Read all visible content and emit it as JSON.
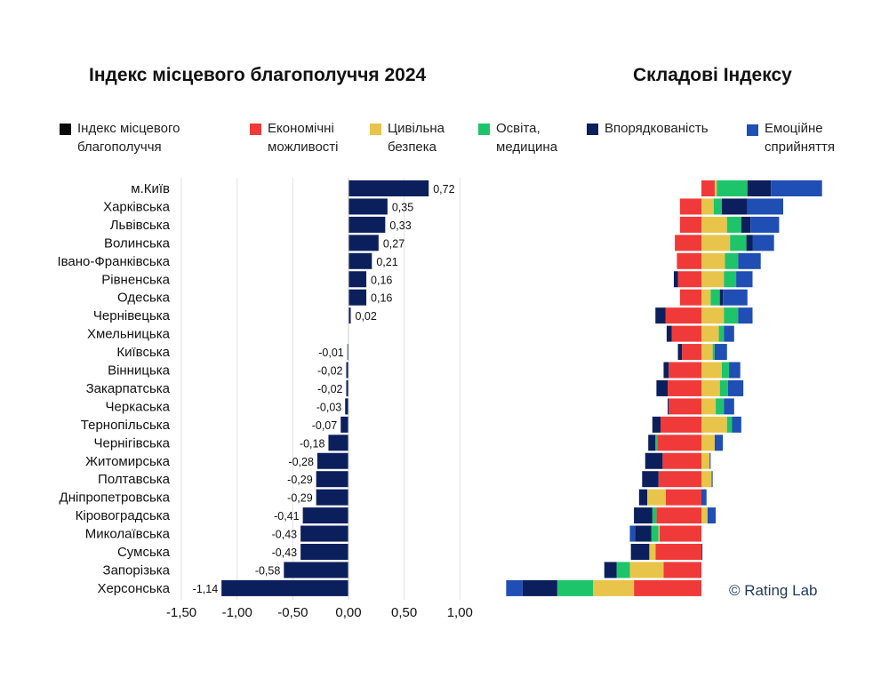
{
  "titles": {
    "left": "Індекс місцевого благополуччя 2024",
    "right": "Складові Індексу"
  },
  "legend": [
    {
      "label": "Індекс місцевого благополуччя",
      "color": "#0a0a0a"
    },
    {
      "label": "Економічні можливості",
      "color": "#f03a3a"
    },
    {
      "label": "Цивільна безпека",
      "color": "#e8c54a"
    },
    {
      "label": "Освіта, медицина",
      "color": "#1ec46a"
    },
    {
      "label": "Впорядкованість",
      "color": "#0b1f5c"
    },
    {
      "label": "Емоційне сприйняття",
      "color": "#1f4eb4"
    }
  ],
  "credit": "© Rating Lab",
  "chart_data": [
    {
      "type": "bar",
      "orientation": "horizontal",
      "title": "Індекс місцевого благополуччя 2024",
      "bar_color": "#0b1f5c",
      "xlim": [
        -1.5,
        1.0
      ],
      "x_ticks": [
        "-1,50",
        "-1,00",
        "-0,50",
        "0,00",
        "0,50",
        "1,00"
      ],
      "x_tick_values": [
        -1.5,
        -1.0,
        -0.5,
        0.0,
        0.5,
        1.0
      ],
      "grid": true,
      "categories": [
        "м.Київ",
        "Харківська",
        "Львівська",
        "Волинська",
        "Івано-Франківська",
        "Рівненська",
        "Одеська",
        "Чернівецька",
        "Хмельницька",
        "Київська",
        "Вінницька",
        "Закарпатська",
        "Черкаська",
        "Тернопільська",
        "Чернігівська",
        "Житомирська",
        "Полтавська",
        "Дніпропетровська",
        "Кіровоградська",
        "Миколаївська",
        "Сумська",
        "Запорізька",
        "Херсонська"
      ],
      "values": [
        0.72,
        0.35,
        0.33,
        0.27,
        0.21,
        0.16,
        0.16,
        0.02,
        0.0,
        -0.01,
        -0.02,
        -0.02,
        -0.03,
        -0.07,
        -0.18,
        -0.28,
        -0.29,
        -0.29,
        -0.41,
        -0.43,
        -0.43,
        -0.58,
        -1.14
      ],
      "value_labels": [
        "0,72",
        "0,35",
        "0,33",
        "0,27",
        "0,21",
        "0,16",
        "0,16",
        "0,02",
        "",
        "-0,01",
        "-0,02",
        "-0,02",
        "-0,03",
        "-0,07",
        "-0,18",
        "-0,28",
        "-0,29",
        "-0,29",
        "-0,41",
        "-0,43",
        "-0,43",
        "-0,58",
        "-1,14"
      ]
    },
    {
      "type": "bar",
      "orientation": "horizontal",
      "stacked": "diverging",
      "title": "Складові Індексу",
      "categories": [
        "м.Київ",
        "Харківська",
        "Львівська",
        "Волинська",
        "Івано-Франківська",
        "Рівненська",
        "Одеська",
        "Чернівецька",
        "Хмельницька",
        "Київська",
        "Вінницька",
        "Закарпатська",
        "Черкаська",
        "Тернопільська",
        "Чернігівська",
        "Житомирська",
        "Полтавська",
        "Дніпропетровська",
        "Кіровоградська",
        "Миколаївська",
        "Сумська",
        "Запорізька",
        "Херсонська"
      ],
      "series": [
        {
          "name": "Економічні можливості",
          "color": "#f03a3a",
          "values": [
            0.13,
            -0.21,
            -0.21,
            -0.26,
            -0.24,
            -0.23,
            -0.21,
            -0.35,
            -0.29,
            -0.19,
            -0.32,
            -0.33,
            -0.32,
            -0.4,
            -0.43,
            -0.38,
            -0.42,
            -0.35,
            -0.44,
            -0.41,
            -0.45,
            -0.37,
            -0.66
          ]
        },
        {
          "name": "Цивільна безпека",
          "color": "#e8c54a",
          "values": [
            0.02,
            0.12,
            0.25,
            0.28,
            0.23,
            0.22,
            0.09,
            0.22,
            0.17,
            0.11,
            0.2,
            0.18,
            0.14,
            0.25,
            0.13,
            0.08,
            0.1,
            -0.18,
            0.06,
            -0.01,
            -0.06,
            -0.33,
            -0.4
          ]
        },
        {
          "name": "Освіта, медицина",
          "color": "#1ec46a",
          "values": [
            0.3,
            0.08,
            0.14,
            0.16,
            0.13,
            0.12,
            0.09,
            0.14,
            0.05,
            0.02,
            0.07,
            0.08,
            0.08,
            0.05,
            -0.02,
            0.0,
            0.0,
            0.0,
            -0.04,
            -0.07,
            0.0,
            -0.13,
            -0.35
          ]
        },
        {
          "name": "Впорядкованість",
          "color": "#0b1f5c",
          "values": [
            0.23,
            0.25,
            0.09,
            0.06,
            0.0,
            -0.04,
            0.03,
            -0.1,
            -0.05,
            -0.04,
            -0.05,
            -0.11,
            -0.01,
            -0.08,
            -0.07,
            -0.17,
            -0.16,
            -0.08,
            -0.18,
            -0.16,
            -0.18,
            -0.12,
            -0.34
          ]
        },
        {
          "name": "Емоційне сприйняття",
          "color": "#1f4eb4",
          "values": [
            0.5,
            0.35,
            0.28,
            0.21,
            0.22,
            0.16,
            0.24,
            0.14,
            0.1,
            0.12,
            0.11,
            0.15,
            0.1,
            0.09,
            0.08,
            0.01,
            0.01,
            0.05,
            0.08,
            -0.05,
            0.01,
            0.0,
            -0.16
          ]
        }
      ]
    }
  ]
}
